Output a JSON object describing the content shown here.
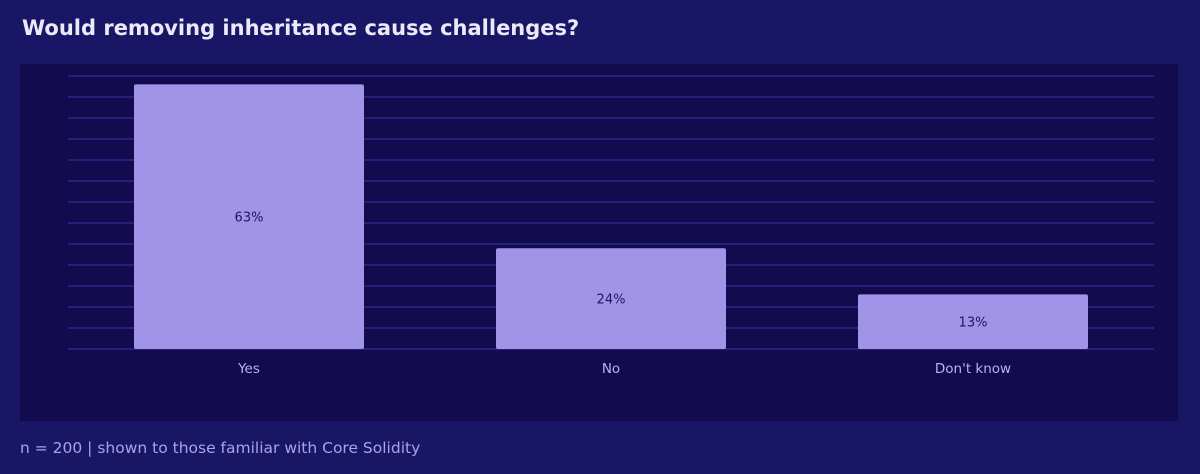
{
  "title": "Would removing inheritance cause challenges?",
  "footnote": "n = 200 | shown to those familiar with Core Solidity",
  "colors": {
    "page_background": "#1a1666",
    "plot_background": "#120c4f",
    "gridline": "#3a34a8",
    "bar": "#a093e8",
    "value_label": "#1e1663",
    "tick_label": "#b9b2ef",
    "title": "#ece9fb",
    "footnote": "#a9a2e6"
  },
  "chart_data": {
    "type": "bar",
    "categories": [
      "Yes",
      "No",
      "Don't know"
    ],
    "values": [
      63,
      24,
      13
    ],
    "value_labels": [
      "63%",
      "24%",
      "13%"
    ],
    "title": "Would removing inheritance cause challenges?",
    "xlabel": "",
    "ylabel": "",
    "ylim": [
      0,
      65
    ],
    "y_grid_step": 5,
    "grid": true,
    "y_tick_labels_shown": false,
    "legend": "none"
  }
}
